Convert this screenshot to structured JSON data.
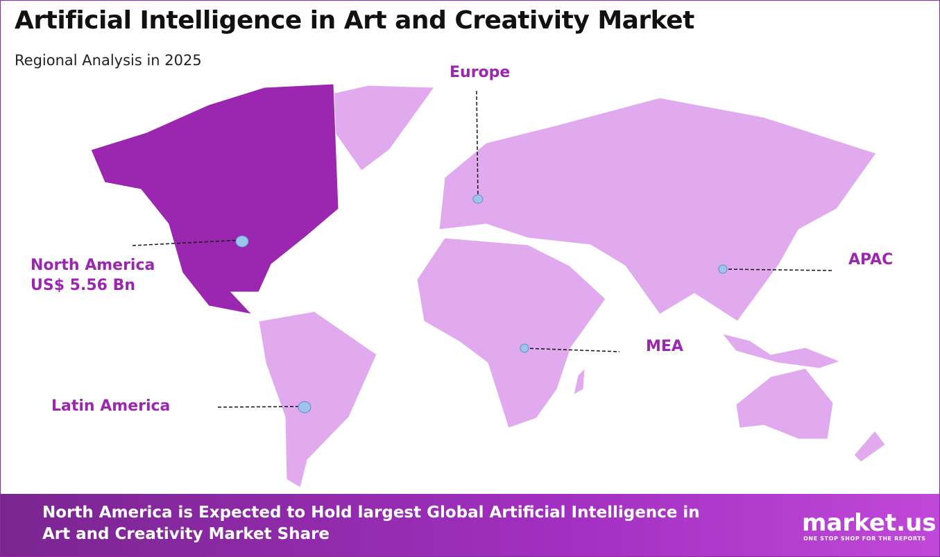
{
  "header": {
    "title": "Artificial Intelligence in Art and Creativity Market",
    "subtitle": "Regional Analysis in 2025"
  },
  "regions": [
    {
      "name": "North America",
      "value": "US$ 5.56 Bn"
    },
    {
      "name": "Europe"
    },
    {
      "name": "APAC"
    },
    {
      "name": "MEA"
    },
    {
      "name": "Latin America"
    }
  ],
  "footer": {
    "text": "North America is Expected to Hold largest Global Artificial Intelligence in Art and Creativity Market Share"
  },
  "logo": {
    "name": "market.us",
    "tagline": "ONE STOP SHOP FOR THE REPORTS"
  }
}
